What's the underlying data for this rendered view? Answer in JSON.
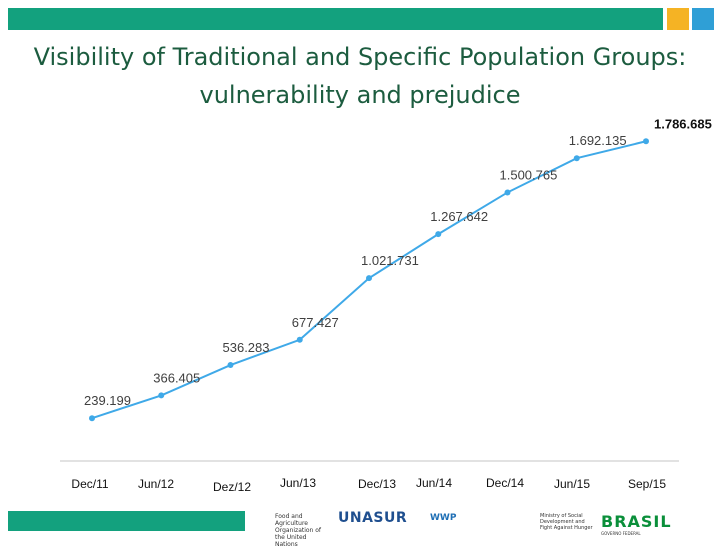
{
  "header": {
    "title_line1": "Visibility of Traditional and Specific Population Groups:",
    "title_line2": "vulnerability and prejudice",
    "colors": {
      "bar": "#13a17e",
      "accent_yellow": "#f5b324",
      "accent_blue": "#2f9fd6",
      "title": "#1c5c3f"
    }
  },
  "chart_data": {
    "type": "line",
    "title": "",
    "xlabel": "",
    "ylabel": "",
    "categories": [
      "Dec/11",
      "Jun/12",
      "Dez/12",
      "Jun/13",
      "Dec/13",
      "Jun/14",
      "Dec/14",
      "Jun/15",
      "Sep/15"
    ],
    "values": [
      239199,
      366405,
      536283,
      677427,
      1021731,
      1267642,
      1500765,
      1692135,
      1786685
    ],
    "labels": [
      "239.199",
      "366.405",
      "536.283",
      "677.427",
      "1.021.731",
      "1.267.642",
      "1.500.765",
      "1.692.135",
      "1.786.685"
    ],
    "ylim": [
      0,
      1900000
    ],
    "grid": false,
    "line_color": "#3fa9e8"
  },
  "footer": {
    "logos": {
      "fao": "Food and Agriculture Organization of the United Nations",
      "unasur": "UNASUR",
      "wfp": "WWP",
      "mds": "Ministry of Social Development and Fight Against Hunger",
      "brasil": "BRASIL",
      "brasil_sub": "GOVERNO FEDERAL"
    }
  }
}
